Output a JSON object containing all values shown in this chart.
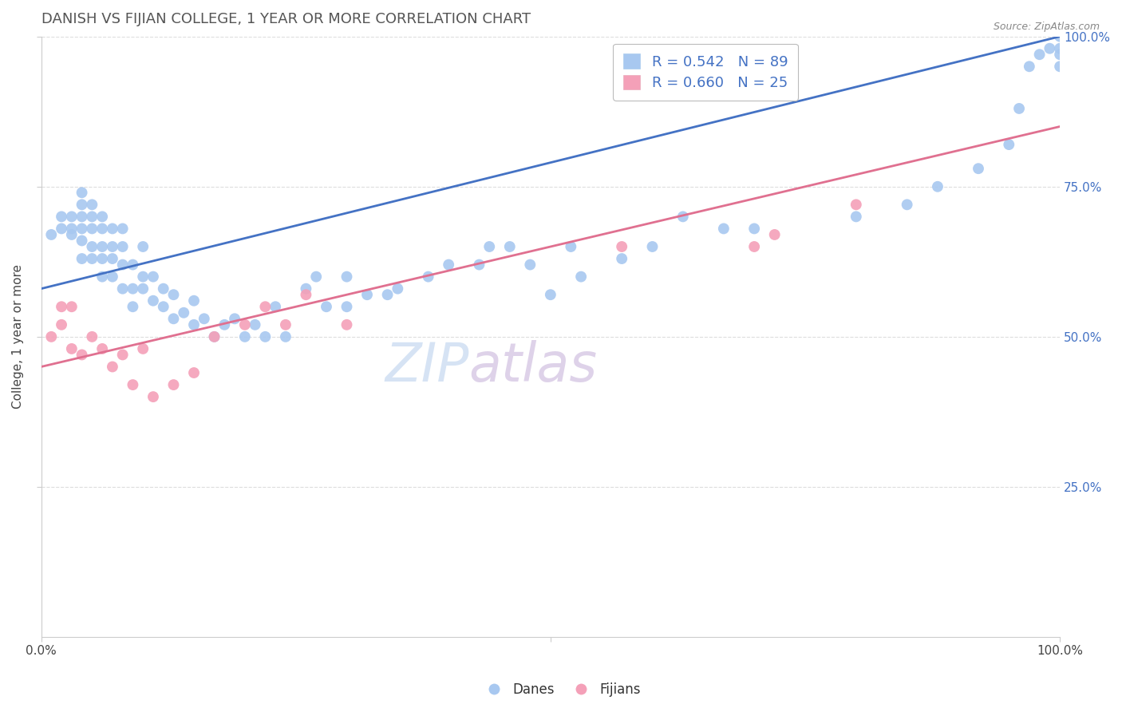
{
  "title": "DANISH VS FIJIAN COLLEGE, 1 YEAR OR MORE CORRELATION CHART",
  "source": "Source: ZipAtlas.com",
  "ylabel": "College, 1 year or more",
  "xlim": [
    0.0,
    1.0
  ],
  "ylim": [
    0.0,
    1.0
  ],
  "dane_R": 0.542,
  "dane_N": 89,
  "fijian_R": 0.66,
  "fijian_N": 25,
  "dane_color": "#A8C8F0",
  "fijian_color": "#F4A0B8",
  "dane_line_color": "#4472C4",
  "fijian_line_color": "#E07090",
  "legend_text_color": "#4472C4",
  "right_tick_color": "#4472C4",
  "background_color": "#FFFFFF",
  "grid_color": "#DDDDDD",
  "title_color": "#555555",
  "source_color": "#888888",
  "watermark_zip_color": "#C8D8F0",
  "watermark_atlas_color": "#D8C8E8",
  "danes_x": [
    0.01,
    0.02,
    0.02,
    0.03,
    0.03,
    0.03,
    0.04,
    0.04,
    0.04,
    0.04,
    0.04,
    0.04,
    0.05,
    0.05,
    0.05,
    0.05,
    0.05,
    0.06,
    0.06,
    0.06,
    0.06,
    0.06,
    0.07,
    0.07,
    0.07,
    0.07,
    0.08,
    0.08,
    0.08,
    0.08,
    0.09,
    0.09,
    0.09,
    0.1,
    0.1,
    0.1,
    0.11,
    0.11,
    0.12,
    0.12,
    0.13,
    0.13,
    0.14,
    0.15,
    0.15,
    0.16,
    0.17,
    0.18,
    0.19,
    0.2,
    0.21,
    0.22,
    0.23,
    0.24,
    0.26,
    0.27,
    0.28,
    0.3,
    0.3,
    0.32,
    0.34,
    0.35,
    0.38,
    0.4,
    0.43,
    0.44,
    0.46,
    0.48,
    0.5,
    0.52,
    0.53,
    0.57,
    0.6,
    0.63,
    0.67,
    0.7,
    0.8,
    0.85,
    0.88,
    0.92,
    0.95,
    0.96,
    0.97,
    0.98,
    0.99,
    1.0,
    1.0,
    1.0,
    1.0
  ],
  "danes_y": [
    0.67,
    0.68,
    0.7,
    0.67,
    0.68,
    0.7,
    0.63,
    0.66,
    0.68,
    0.7,
    0.72,
    0.74,
    0.63,
    0.65,
    0.68,
    0.7,
    0.72,
    0.6,
    0.63,
    0.65,
    0.68,
    0.7,
    0.6,
    0.63,
    0.65,
    0.68,
    0.58,
    0.62,
    0.65,
    0.68,
    0.55,
    0.58,
    0.62,
    0.58,
    0.6,
    0.65,
    0.56,
    0.6,
    0.55,
    0.58,
    0.53,
    0.57,
    0.54,
    0.52,
    0.56,
    0.53,
    0.5,
    0.52,
    0.53,
    0.5,
    0.52,
    0.5,
    0.55,
    0.5,
    0.58,
    0.6,
    0.55,
    0.6,
    0.55,
    0.57,
    0.57,
    0.58,
    0.6,
    0.62,
    0.62,
    0.65,
    0.65,
    0.62,
    0.57,
    0.65,
    0.6,
    0.63,
    0.65,
    0.7,
    0.68,
    0.68,
    0.7,
    0.72,
    0.75,
    0.78,
    0.82,
    0.88,
    0.95,
    0.97,
    0.98,
    0.95,
    0.97,
    0.98,
    1.0
  ],
  "fijians_x": [
    0.01,
    0.02,
    0.02,
    0.03,
    0.03,
    0.04,
    0.05,
    0.06,
    0.07,
    0.08,
    0.09,
    0.1,
    0.11,
    0.13,
    0.15,
    0.17,
    0.2,
    0.22,
    0.24,
    0.26,
    0.3,
    0.57,
    0.7,
    0.72,
    0.8
  ],
  "fijians_y": [
    0.5,
    0.52,
    0.55,
    0.48,
    0.55,
    0.47,
    0.5,
    0.48,
    0.45,
    0.47,
    0.42,
    0.48,
    0.4,
    0.42,
    0.44,
    0.5,
    0.52,
    0.55,
    0.52,
    0.57,
    0.52,
    0.65,
    0.65,
    0.67,
    0.72
  ],
  "dane_line_x0": 0.0,
  "dane_line_y0": 0.58,
  "dane_line_x1": 1.0,
  "dane_line_y1": 1.0,
  "fijian_line_x0": 0.0,
  "fijian_line_y0": 0.45,
  "fijian_line_x1": 1.0,
  "fijian_line_y1": 0.85
}
